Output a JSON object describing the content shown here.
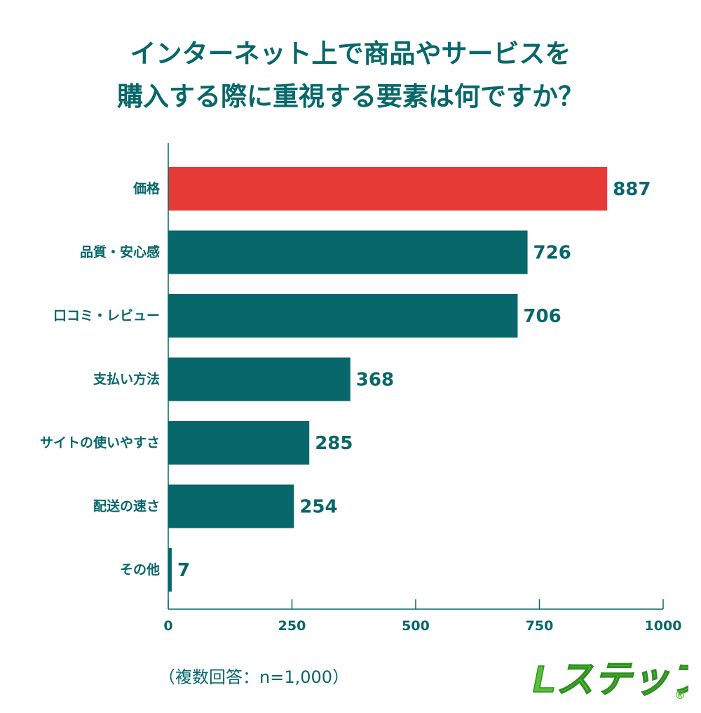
{
  "title": {
    "line1": "インターネット上で商品やサービスを",
    "line2": "購入する際に重視する要素は何ですか？"
  },
  "note": "（複数回答：n=1,000）",
  "logo": {
    "text": "Lステップ",
    "registered": "®"
  },
  "colors": {
    "primary": "#07676a",
    "highlight": "#e63a36",
    "axis": "#07676a",
    "logo_green": "#5bbf3a"
  },
  "chart_data": {
    "type": "bar",
    "orientation": "horizontal",
    "title": "インターネット上で商品やサービスを購入する際に重視する要素は何ですか？",
    "categories": [
      "価格",
      "品質・安心感",
      "口コミ・レビュー",
      "支払い方法",
      "サイトの使いやすさ",
      "配送の速さ",
      "その他"
    ],
    "values": [
      887,
      726,
      706,
      368,
      285,
      254,
      7
    ],
    "highlight_index": 0,
    "xlim": [
      0,
      1000
    ],
    "xticks": [
      0,
      250,
      500,
      750,
      1000
    ],
    "xlabel": "",
    "ylabel": "",
    "grid": false
  }
}
